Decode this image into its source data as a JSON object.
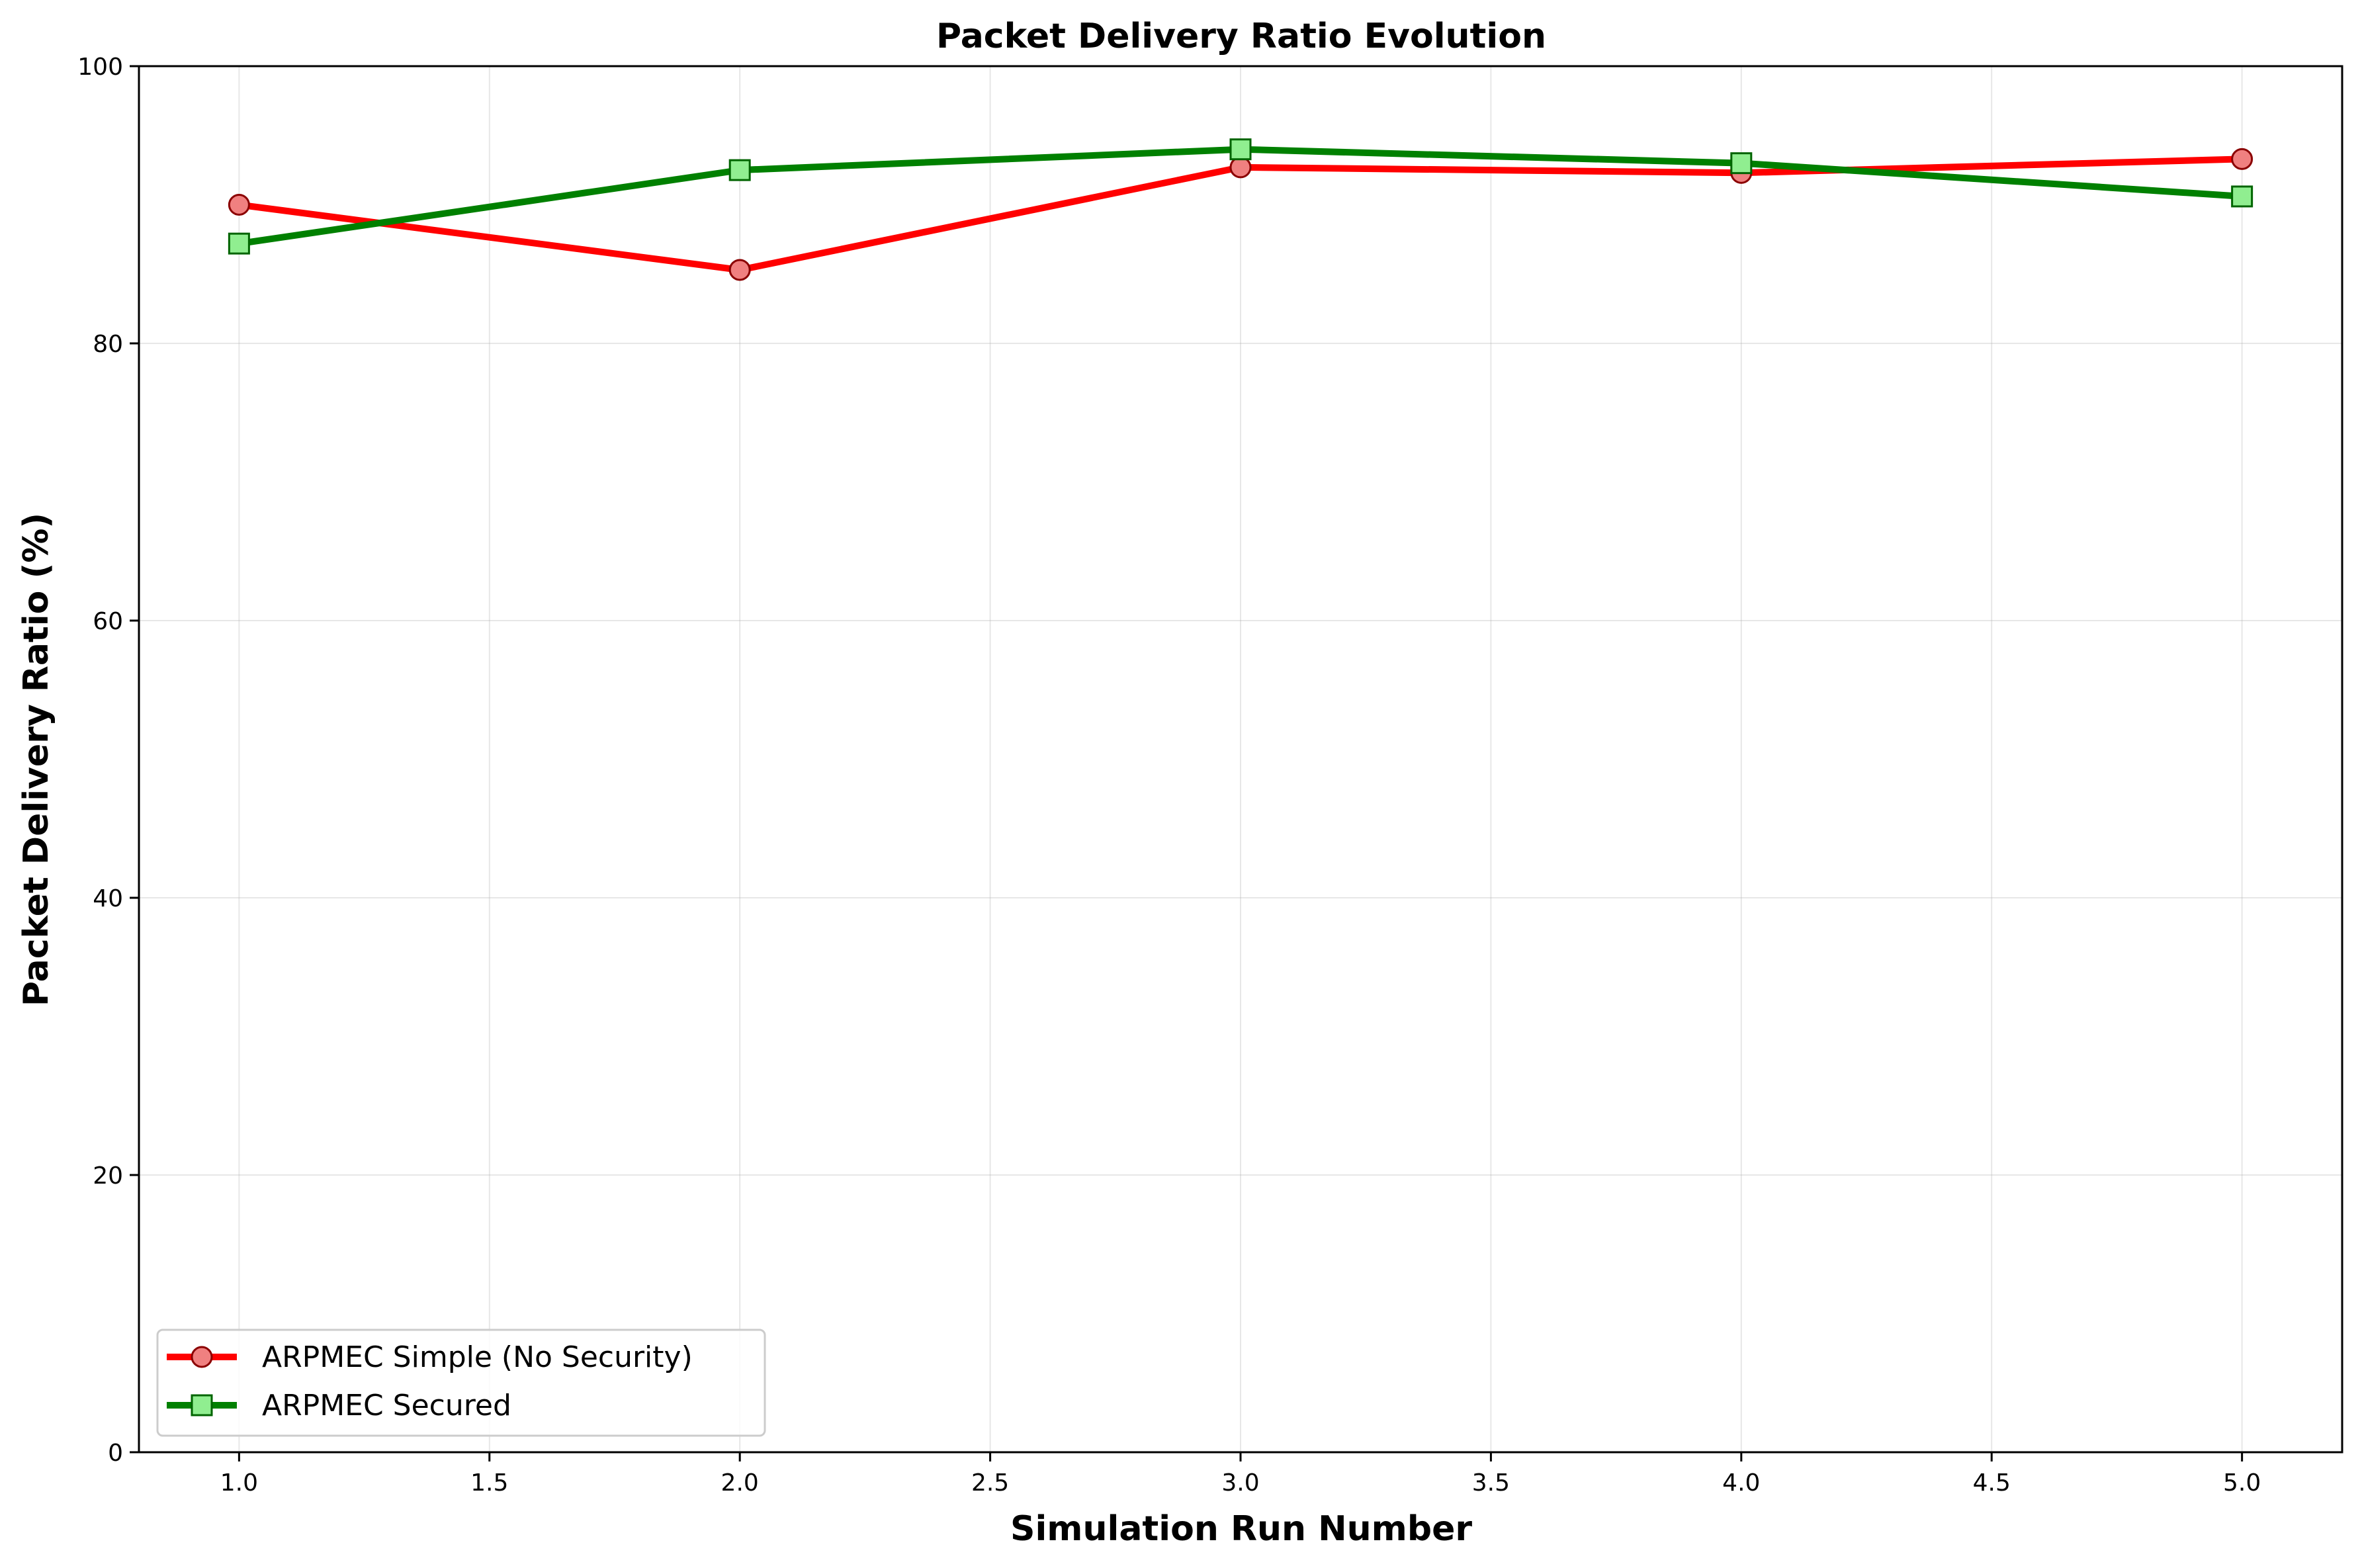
{
  "chart_data": {
    "type": "line",
    "title": "Packet Delivery Ratio Evolution",
    "xlabel": "Simulation Run Number",
    "ylabel": "Packet Delivery Ratio (%)",
    "xlim": [
      0.8,
      5.2
    ],
    "ylim": [
      0,
      100
    ],
    "xticks": [
      "1.0",
      "1.5",
      "2.0",
      "2.5",
      "3.0",
      "3.5",
      "4.0",
      "4.5",
      "5.0"
    ],
    "yticks": [
      "0",
      "20",
      "40",
      "60",
      "80",
      "100"
    ],
    "grid": true,
    "legend_position": "lower-left",
    "x": [
      1,
      2,
      3,
      4,
      5
    ],
    "series": [
      {
        "name": "ARPMEC Simple (No Security)",
        "values": [
          90.0,
          85.3,
          92.7,
          92.3,
          93.3
        ],
        "line_color": "#ff0000",
        "marker": "circle",
        "marker_fill": "#f08080",
        "marker_edge": "#8b0000"
      },
      {
        "name": "ARPMEC Secured",
        "values": [
          87.2,
          92.5,
          94.0,
          93.0,
          90.6
        ],
        "line_color": "#008000",
        "marker": "square",
        "marker_fill": "#90ee90",
        "marker_edge": "#006400"
      }
    ]
  }
}
